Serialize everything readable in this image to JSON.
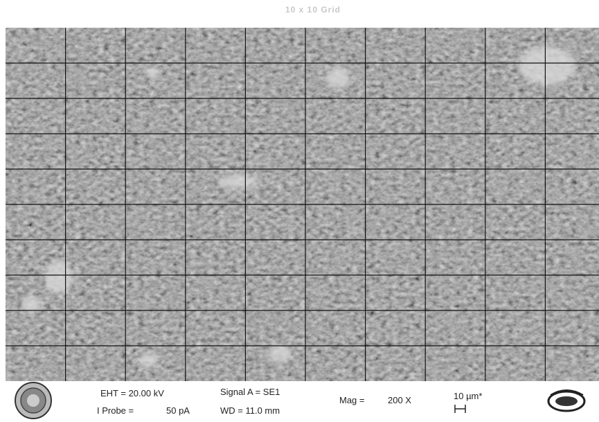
{
  "title": "10 x 10 Grid",
  "info_bar": {
    "eht": "EHT = 20.00 kV",
    "probe_label": "I Probe =",
    "probe_value": "50 pA",
    "signal": "Signal A = SE1",
    "wd": "WD = 11.0 mm",
    "mag_label": "Mag =",
    "mag_value": "200 X",
    "scale": "10 µm*"
  }
}
